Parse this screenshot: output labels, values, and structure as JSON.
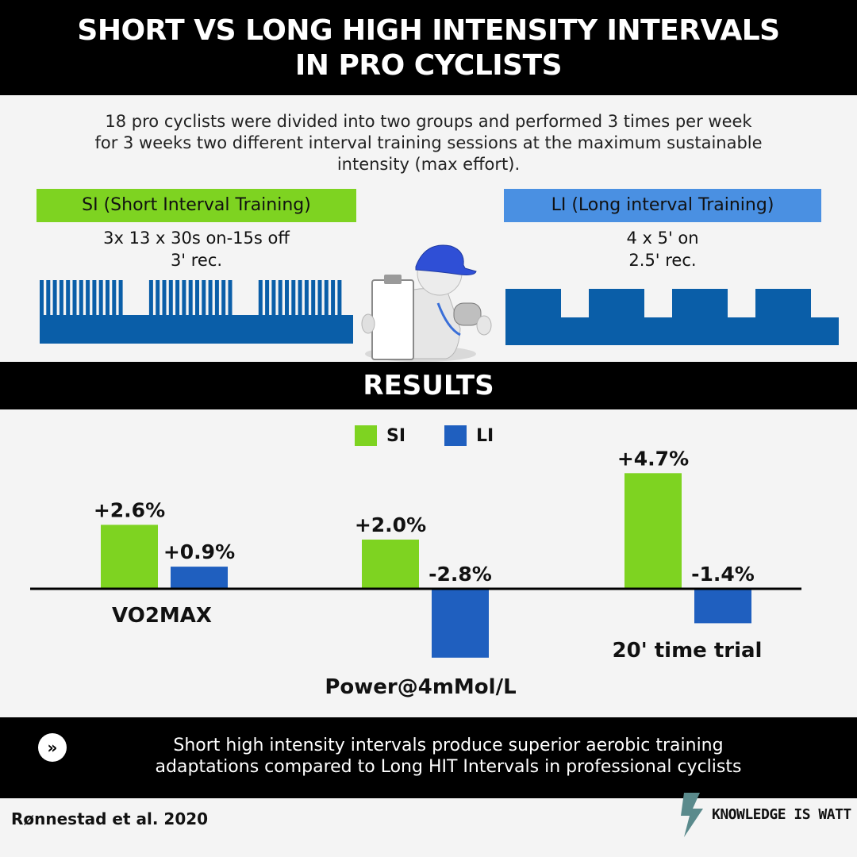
{
  "title": {
    "line1": "SHORT VS LONG  HIGH INTENSITY INTERVALS",
    "line2": "IN PRO CYCLISTS"
  },
  "intro": [
    "18 pro cyclists were divided into two groups and performed  3 times per week",
    "for 3 weeks two different interval training sessions at the maximum sustainable",
    "intensity (max effort)."
  ],
  "protocols": {
    "si": {
      "label": "SI (Short Interval Training)",
      "line1": "3x 13 x 30s on-15s off",
      "line2": "3' rec.",
      "color": "#7ed321"
    },
    "li": {
      "label": "LI (Long interval Training)",
      "line1": "4 x 5'  on",
      "line2": "2.5' rec.",
      "color": "#4a90e2"
    }
  },
  "pattern_color": "#0a5ea8",
  "results_title": "RESULTS",
  "legend": {
    "si": "SI",
    "li": "LI"
  },
  "chart_data": {
    "type": "bar",
    "categories": [
      "VO2MAX",
      "Power@4mMol/L",
      "20' time trial"
    ],
    "series": [
      {
        "name": "SI",
        "values": [
          2.6,
          2.0,
          4.7
        ],
        "labels": [
          "+2.6%",
          "+2.0%",
          "+4.7%"
        ],
        "color": "#7ed321"
      },
      {
        "name": "LI",
        "values": [
          0.9,
          -2.8,
          -1.4
        ],
        "labels": [
          "+0.9%",
          "-2.8%",
          "-1.4%"
        ],
        "color": "#1f5fbf"
      }
    ],
    "unit": "%",
    "title": "",
    "xlabel": "",
    "ylabel": ""
  },
  "takeaway": {
    "icon": "double-chevron-right-icon",
    "icon_glyph": "»",
    "line1": "Short high intensity intervals produce superior aerobic training",
    "line2": "adaptations compared to Long HIT Intervals in professional cyclists"
  },
  "citation": "Rønnestad et al. 2020",
  "brand": {
    "name": "KNOWLEDGE IS WATT",
    "icon": "lightning-bolt-icon",
    "color": "#5a8a8c"
  }
}
